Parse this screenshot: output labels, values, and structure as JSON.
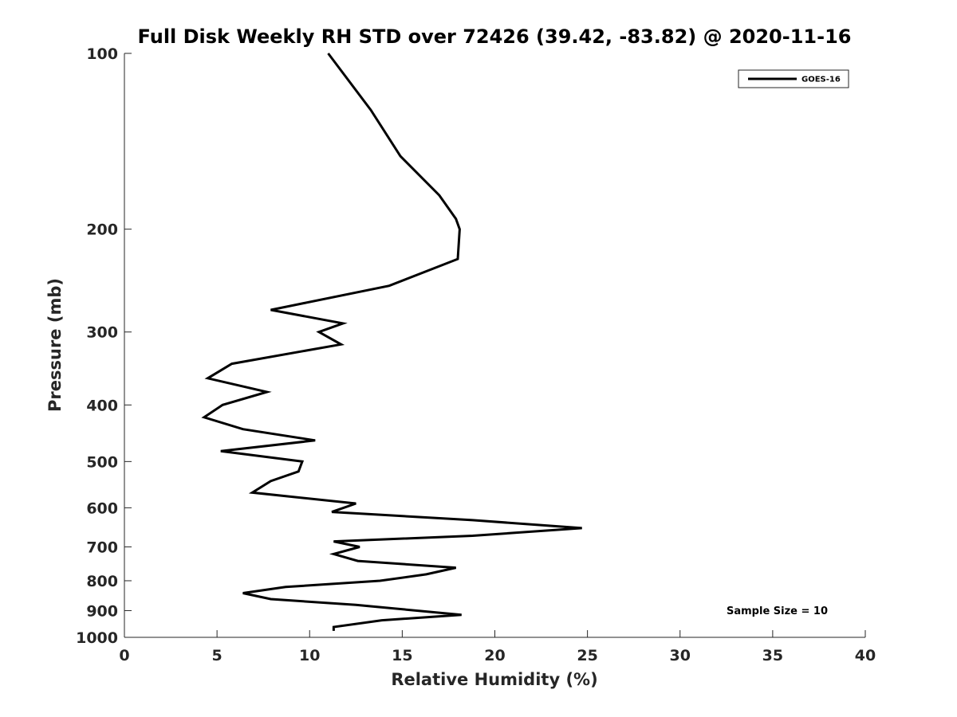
{
  "chart_data": {
    "type": "line",
    "title": "Full Disk Weekly RH STD over 72426 (39.42, -83.82) @ 2020-11-16",
    "xlabel": "Relative Humidity (%)",
    "ylabel": "Pressure (mb)",
    "xlim": [
      0,
      40
    ],
    "ylim": [
      1000,
      100
    ],
    "y_scale": "log",
    "y_reversed": true,
    "grid": false,
    "x_ticks": [
      "0",
      "5",
      "10",
      "15",
      "20",
      "25",
      "30",
      "35",
      "40"
    ],
    "y_ticks": [
      "100",
      "200",
      "300",
      "400",
      "500",
      "600",
      "700",
      "800",
      "900",
      "1000"
    ],
    "legend": {
      "position": "top-right",
      "entries": [
        "GOES-16"
      ]
    },
    "annotation": "Sample Size = 10",
    "series": [
      {
        "name": "GOES-16",
        "color": "#000000",
        "points": [
          [
            11.0,
            100
          ],
          [
            13.3,
            125
          ],
          [
            14.9,
            150
          ],
          [
            17.0,
            175
          ],
          [
            17.9,
            192
          ],
          [
            18.1,
            200
          ],
          [
            18.0,
            225
          ],
          [
            14.3,
            250
          ],
          [
            7.9,
            275
          ],
          [
            11.8,
            290
          ],
          [
            10.5,
            300
          ],
          [
            11.7,
            315
          ],
          [
            5.8,
            340
          ],
          [
            4.5,
            360
          ],
          [
            7.7,
            380
          ],
          [
            5.3,
            400
          ],
          [
            4.3,
            420
          ],
          [
            6.4,
            440
          ],
          [
            10.3,
            460
          ],
          [
            5.2,
            480
          ],
          [
            9.6,
            500
          ],
          [
            9.4,
            520
          ],
          [
            7.9,
            540
          ],
          [
            6.9,
            565
          ],
          [
            12.5,
            590
          ],
          [
            11.2,
            610
          ],
          [
            18.8,
            630
          ],
          [
            24.7,
            650
          ],
          [
            18.8,
            670
          ],
          [
            11.3,
            685
          ],
          [
            12.7,
            700
          ],
          [
            11.3,
            720
          ],
          [
            12.6,
            740
          ],
          [
            17.9,
            760
          ],
          [
            16.3,
            780
          ],
          [
            13.8,
            800
          ],
          [
            8.7,
            820
          ],
          [
            6.4,
            840
          ],
          [
            7.9,
            860
          ],
          [
            12.5,
            880
          ],
          [
            18.2,
            915
          ],
          [
            13.9,
            935
          ],
          [
            11.3,
            960
          ],
          [
            11.3,
            975
          ]
        ]
      }
    ]
  }
}
